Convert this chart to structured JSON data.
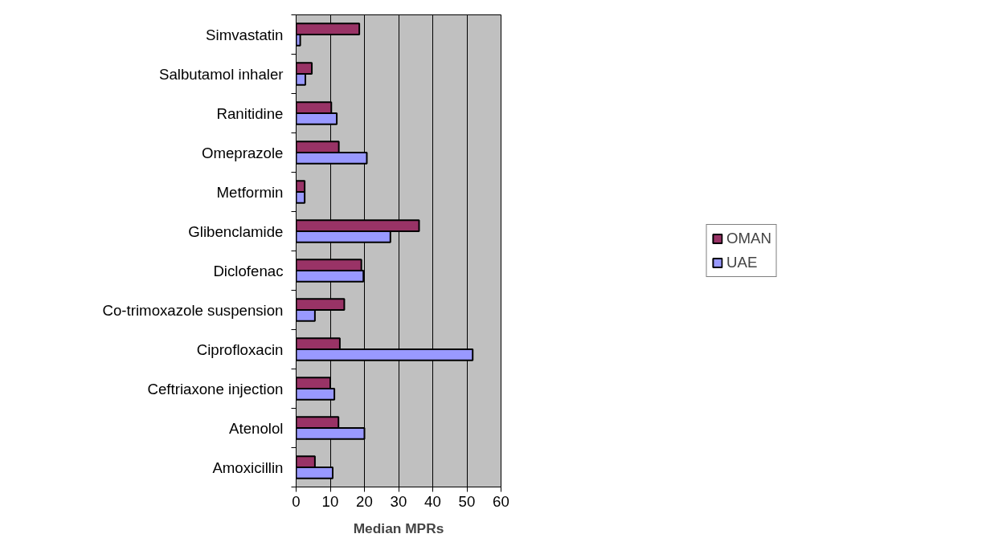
{
  "chart_data": {
    "type": "bar",
    "orientation": "horizontal",
    "xlabel": "Median MPRs",
    "categories": [
      "Simvastatin",
      "Salbutamol inhaler",
      "Ranitidine",
      "Omeprazole",
      "Metformin",
      "Glibenclamide",
      "Diclofenac",
      "Co-trimoxazole suspension",
      "Ciprofloxacin",
      "Ceftriaxone injection",
      "Atenolol",
      "Amoxicillin"
    ],
    "series": [
      {
        "name": "OMAN",
        "color": "#993366",
        "values": [
          18.5,
          4.6,
          10.3,
          12.5,
          2.5,
          36,
          19.1,
          14.1,
          12.8,
          10.0,
          12.4,
          5.5
        ]
      },
      {
        "name": "UAE",
        "color": "#9999ff",
        "values": [
          1.2,
          2.7,
          11.9,
          20.7,
          2.5,
          27.6,
          19.7,
          5.5,
          51.7,
          11.2,
          20.0,
          10.7
        ]
      }
    ],
    "xlim": [
      0,
      60
    ],
    "xticks": [
      0,
      10,
      20,
      30,
      40,
      50,
      60
    ],
    "grid": "x",
    "legend": "right"
  }
}
